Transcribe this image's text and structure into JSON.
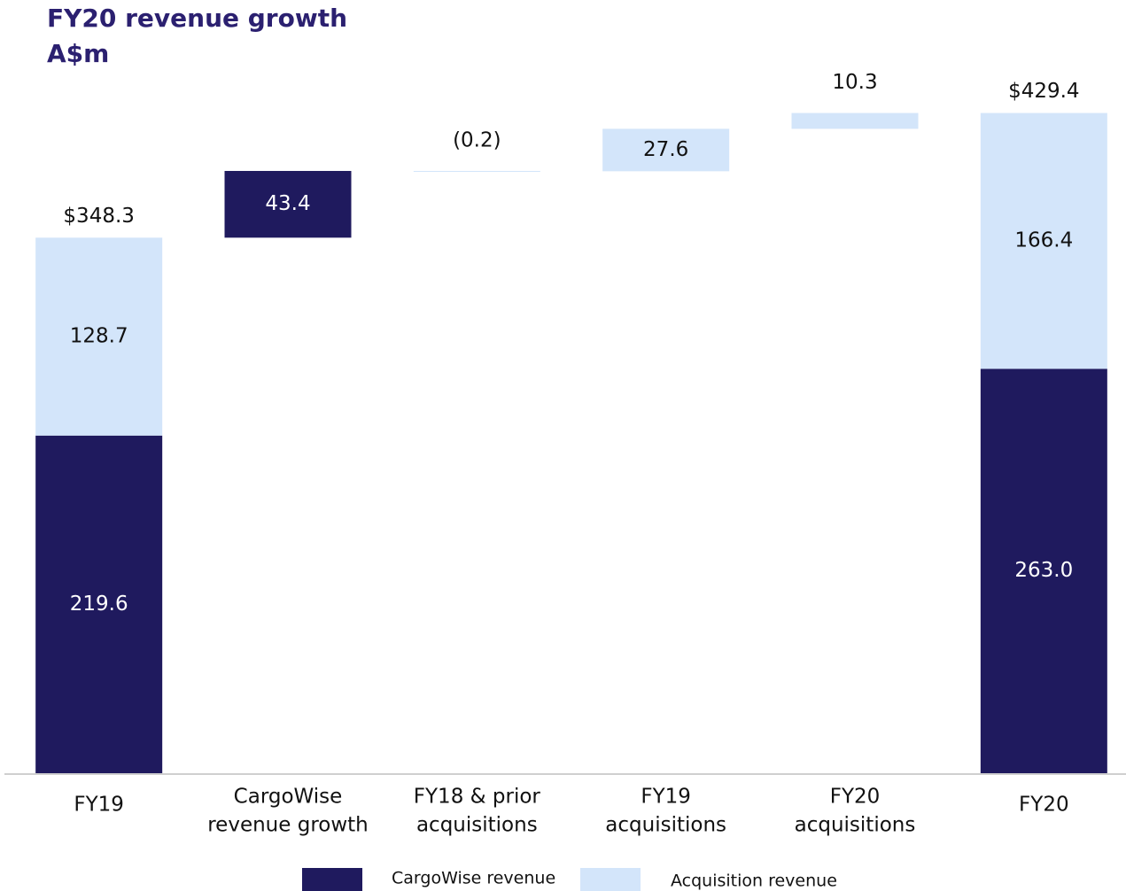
{
  "chart_data": {
    "type": "waterfall",
    "title": "FY20 revenue growth",
    "subtitle": "A$m",
    "categories": [
      [
        "FY19"
      ],
      [
        "CargoWise",
        "revenue growth"
      ],
      [
        "FY18 & prior",
        "acquisitions"
      ],
      [
        "FY19",
        "acquisitions"
      ],
      [
        "FY20",
        "acquisitions"
      ],
      [
        "FY20"
      ]
    ],
    "series": [
      {
        "name": "CargoWise revenue",
        "color": "#1f1a5e",
        "values": [
          219.6,
          43.4,
          null,
          null,
          null,
          263
        ],
        "value_labels": [
          null,
          null,
          null,
          null,
          null,
          "263.0"
        ]
      },
      {
        "name": "Acquisition revenue",
        "color": "#d3e5fa",
        "values": [
          128.7,
          null,
          -0.2,
          27.6,
          10.3,
          166.4
        ],
        "value_labels": [
          null,
          null,
          "(0.2)",
          null,
          null,
          null
        ]
      }
    ],
    "totals": [
      348.3,
      null,
      null,
      null,
      null,
      429.4
    ],
    "total_labels": [
      "$348.3",
      null,
      null,
      null,
      null,
      "$429.4"
    ],
    "ylim": [
      0,
      500
    ]
  }
}
